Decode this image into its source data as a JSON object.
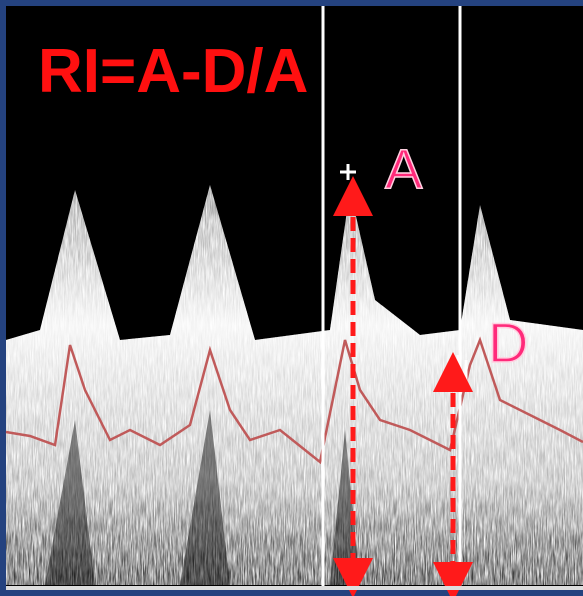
{
  "formula": "RI=A-D/A",
  "labels": {
    "peak": "A",
    "diastole": "D"
  }
}
